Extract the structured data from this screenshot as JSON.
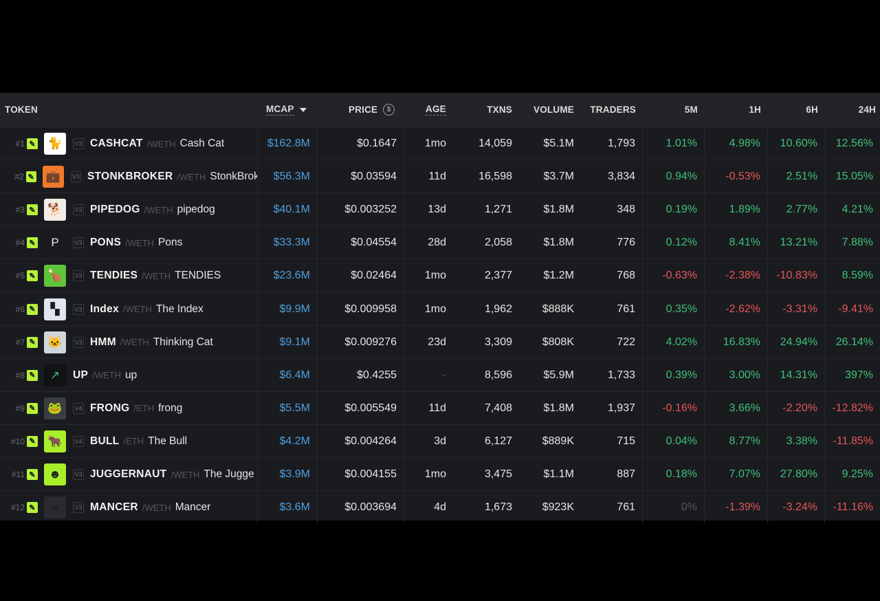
{
  "header": {
    "token": "TOKEN",
    "mcap": "MCAP",
    "price": "PRICE",
    "age": "AGE",
    "txns": "TXNS",
    "volume": "VOLUME",
    "traders": "TRADERS",
    "m5": "5M",
    "h1": "1H",
    "h6": "6H",
    "h24": "24H",
    "price_icon": "dollar-coin-icon",
    "sort_icon": "sort-descending-icon"
  },
  "rows": [
    {
      "rank": "#1",
      "ver": "V3",
      "symbol": "CASHCAT",
      "pair": "/WETH",
      "name": "Cash Cat",
      "mcap": "$162.8M",
      "price": "$0.1647",
      "age": "1mo",
      "txns": "14,059",
      "volume": "$5.1M",
      "traders": "1,793",
      "m5": "1.01%",
      "h1": "4.98%",
      "h6": "10.60%",
      "h24": "12.56%",
      "avatar_icon": "cat-icon",
      "avatar_bg": "#ffffff"
    },
    {
      "rank": "#2",
      "ver": "V3",
      "symbol": "STONKBROKER",
      "pair": "/WETH",
      "name": "StonkBrok",
      "mcap": "$56.3M",
      "price": "$0.03594",
      "age": "11d",
      "txns": "16,598",
      "volume": "$3.7M",
      "traders": "3,834",
      "m5": "0.94%",
      "h1": "-0.53%",
      "h6": "2.51%",
      "h24": "15.05%",
      "avatar_icon": "briefcase-icon",
      "avatar_bg": "#f07a2a"
    },
    {
      "rank": "#3",
      "ver": "V3",
      "symbol": "PIPEDOG",
      "pair": "/WETH",
      "name": "pipedog",
      "mcap": "$40.1M",
      "price": "$0.003252",
      "age": "13d",
      "txns": "1,271",
      "volume": "$1.8M",
      "traders": "348",
      "m5": "0.19%",
      "h1": "1.89%",
      "h6": "2.77%",
      "h24": "4.21%",
      "avatar_icon": "dog-icon",
      "avatar_bg": "#f3ece6"
    },
    {
      "rank": "#4",
      "ver": "V3",
      "symbol": "PONS",
      "pair": "/WETH",
      "name": "Pons",
      "mcap": "$33.3M",
      "price": "$0.04554",
      "age": "28d",
      "txns": "2,058",
      "volume": "$1.8M",
      "traders": "776",
      "m5": "0.12%",
      "h1": "8.41%",
      "h6": "13.21%",
      "h24": "7.88%",
      "avatar_icon": "p-letter-icon",
      "avatar_bg": "#1a1b1f"
    },
    {
      "rank": "#5",
      "ver": "V3",
      "symbol": "TENDIES",
      "pair": "/WETH",
      "name": "TENDIES",
      "mcap": "$23.6M",
      "price": "$0.02464",
      "age": "1mo",
      "txns": "2,377",
      "volume": "$1.2M",
      "traders": "768",
      "m5": "-0.63%",
      "h1": "-2.38%",
      "h6": "-10.83%",
      "h24": "8.59%",
      "avatar_icon": "chicken-tender-icon",
      "avatar_bg": "#5fc43a"
    },
    {
      "rank": "#6",
      "ver": "V3",
      "symbol": "Index",
      "pair": "/WETH",
      "name": "The Index",
      "mcap": "$9.9M",
      "price": "$0.009958",
      "age": "1mo",
      "txns": "1,962",
      "volume": "$888K",
      "traders": "761",
      "m5": "0.35%",
      "h1": "-2.62%",
      "h6": "-3.31%",
      "h24": "-9.41%",
      "avatar_icon": "checker-icon",
      "avatar_bg": "#dfe6ef"
    },
    {
      "rank": "#7",
      "ver": "V3",
      "symbol": "HMM",
      "pair": "/WETH",
      "name": "Thinking Cat",
      "mcap": "$9.1M",
      "price": "$0.009276",
      "age": "23d",
      "txns": "3,309",
      "volume": "$808K",
      "traders": "722",
      "m5": "4.02%",
      "h1": "16.83%",
      "h6": "24.94%",
      "h24": "26.14%",
      "avatar_icon": "thinking-cat-icon",
      "avatar_bg": "#cfd6dc"
    },
    {
      "rank": "#8",
      "ver": "",
      "symbol": "UP",
      "pair": "/WETH",
      "name": "up",
      "mcap": "$6.4M",
      "price": "$0.4255",
      "age": "-",
      "txns": "8,596",
      "volume": "$5.9M",
      "traders": "1,733",
      "m5": "0.39%",
      "h1": "3.00%",
      "h6": "14.31%",
      "h24": "397%",
      "avatar_icon": "arrow-up-right-icon",
      "avatar_bg": "#111214"
    },
    {
      "rank": "#9",
      "ver": "V4",
      "symbol": "FRONG",
      "pair": "/ETH",
      "name": "frong",
      "mcap": "$5.5M",
      "price": "$0.005549",
      "age": "11d",
      "txns": "7,408",
      "volume": "$1.8M",
      "traders": "1,937",
      "m5": "-0.16%",
      "h1": "3.66%",
      "h6": "-2.20%",
      "h24": "-12.82%",
      "avatar_icon": "frog-icon",
      "avatar_bg": "#3a3d42"
    },
    {
      "rank": "#10",
      "ver": "V4",
      "symbol": "BULL",
      "pair": "/ETH",
      "name": "The Bull",
      "mcap": "$4.2M",
      "price": "$0.004264",
      "age": "3d",
      "txns": "6,127",
      "volume": "$889K",
      "traders": "715",
      "m5": "0.04%",
      "h1": "8.77%",
      "h6": "3.38%",
      "h24": "-11.85%",
      "avatar_icon": "bull-icon",
      "avatar_bg": "#a8ef2a"
    },
    {
      "rank": "#11",
      "ver": "V3",
      "symbol": "JUGGERNAUT",
      "pair": "/WETH",
      "name": "The Jugge",
      "mcap": "$3.9M",
      "price": "$0.004155",
      "age": "1mo",
      "txns": "3,475",
      "volume": "$1.1M",
      "traders": "887",
      "m5": "0.18%",
      "h1": "7.07%",
      "h6": "27.80%",
      "h24": "9.25%",
      "avatar_icon": "robot-face-icon",
      "avatar_bg": "#a8ef2a"
    },
    {
      "rank": "#12",
      "ver": "V3",
      "symbol": "MANCER",
      "pair": "/WETH",
      "name": "Mancer",
      "mcap": "$3.6M",
      "price": "$0.003694",
      "age": "4d",
      "txns": "1,673",
      "volume": "$923K",
      "traders": "761",
      "m5": "0%",
      "h1": "-1.39%",
      "h6": "-3.24%",
      "h24": "-11.16%",
      "avatar_icon": "hooded-figure-icon",
      "avatar_bg": "#2a2b30"
    }
  ]
}
